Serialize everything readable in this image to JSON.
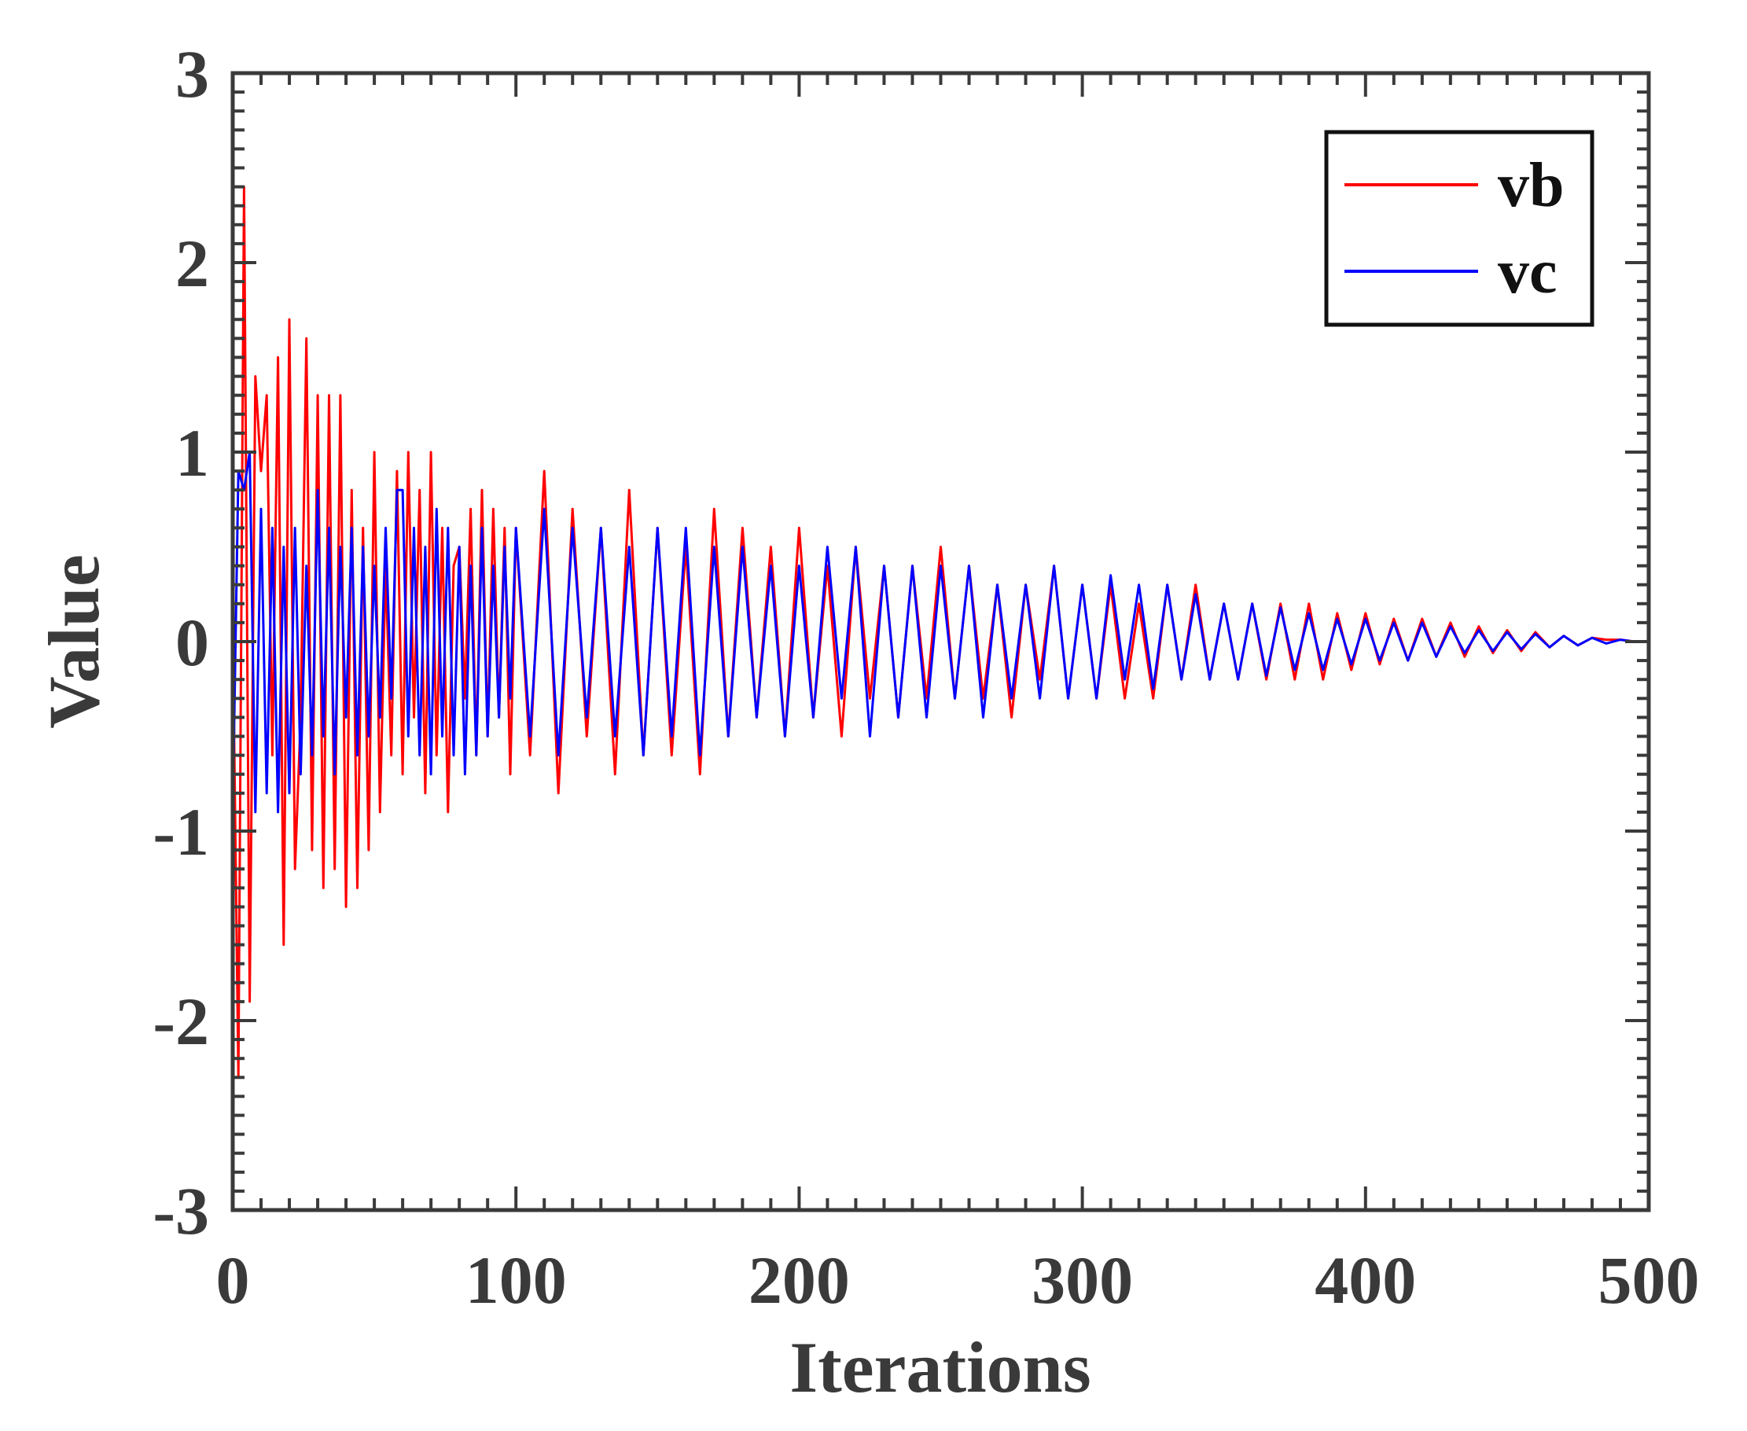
{
  "chart_data": {
    "type": "line",
    "title": "",
    "xlabel": "Iterations",
    "ylabel": "Value",
    "xlim": [
      0,
      500
    ],
    "ylim": [
      -3,
      3
    ],
    "xticks": [
      0,
      100,
      200,
      300,
      400,
      500
    ],
    "yticks": [
      -3,
      -2,
      -1,
      0,
      1,
      2,
      3
    ],
    "xtick_labels": [
      "0",
      "100",
      "200",
      "300",
      "400",
      "500"
    ],
    "ytick_labels": [
      "-3",
      "-2",
      "-1",
      "0",
      "1",
      "2",
      "3"
    ],
    "grid": false,
    "legend": {
      "position": "top-right",
      "entries": [
        "vb",
        "vc"
      ]
    },
    "series": [
      {
        "name": "vb",
        "color": "#ff0000",
        "x": [
          0,
          2,
          4,
          6,
          8,
          10,
          12,
          14,
          16,
          18,
          20,
          22,
          24,
          26,
          28,
          30,
          32,
          34,
          36,
          38,
          40,
          42,
          44,
          46,
          48,
          50,
          52,
          54,
          56,
          58,
          60,
          62,
          64,
          66,
          68,
          70,
          72,
          74,
          76,
          78,
          80,
          82,
          84,
          86,
          88,
          90,
          92,
          94,
          96,
          98,
          100,
          105,
          110,
          115,
          120,
          125,
          130,
          135,
          140,
          145,
          150,
          155,
          160,
          165,
          170,
          175,
          180,
          185,
          190,
          195,
          200,
          205,
          210,
          215,
          220,
          225,
          230,
          235,
          240,
          245,
          250,
          255,
          260,
          265,
          270,
          275,
          280,
          285,
          290,
          295,
          300,
          305,
          310,
          315,
          320,
          325,
          330,
          335,
          340,
          345,
          350,
          355,
          360,
          365,
          370,
          375,
          380,
          385,
          390,
          395,
          400,
          405,
          410,
          415,
          420,
          425,
          430,
          435,
          440,
          445,
          450,
          455,
          460,
          465,
          470,
          475,
          480,
          485,
          490,
          495,
          500
        ],
        "values": [
          0.1,
          -2.3,
          2.4,
          -1.9,
          1.4,
          0.9,
          1.3,
          -0.6,
          1.5,
          -1.6,
          1.7,
          -1.2,
          -0.4,
          1.6,
          -1.1,
          1.3,
          -1.3,
          1.3,
          -1.2,
          1.3,
          -1.4,
          0.8,
          -1.3,
          0.6,
          -1.1,
          1.0,
          -0.9,
          0.4,
          -0.6,
          0.9,
          -0.7,
          1.0,
          -0.4,
          0.8,
          -0.8,
          1.0,
          -0.6,
          0.6,
          -0.9,
          0.4,
          0.5,
          -0.3,
          0.7,
          -0.6,
          0.8,
          -0.5,
          0.7,
          -0.4,
          0.6,
          -0.7,
          0.6,
          -0.6,
          0.9,
          -0.8,
          0.7,
          -0.5,
          0.6,
          -0.7,
          0.8,
          -0.6,
          0.6,
          -0.6,
          0.5,
          -0.7,
          0.7,
          -0.5,
          0.6,
          -0.4,
          0.5,
          -0.5,
          0.6,
          -0.4,
          0.4,
          -0.5,
          0.5,
          -0.3,
          0.4,
          -0.4,
          0.4,
          -0.3,
          0.5,
          -0.3,
          0.4,
          -0.3,
          0.3,
          -0.4,
          0.3,
          -0.2,
          0.4,
          -0.3,
          0.3,
          -0.3,
          0.3,
          -0.3,
          0.2,
          -0.3,
          0.3,
          -0.2,
          0.3,
          -0.2,
          0.2,
          -0.2,
          0.2,
          -0.2,
          0.2,
          -0.2,
          0.2,
          -0.2,
          0.15,
          -0.15,
          0.15,
          -0.12,
          0.12,
          -0.1,
          0.12,
          -0.08,
          0.1,
          -0.08,
          0.08,
          -0.06,
          0.06,
          -0.05,
          0.05,
          -0.03,
          0.03,
          -0.02,
          0.02,
          0.01,
          0.01,
          0.0,
          0.0
        ]
      },
      {
        "name": "vc",
        "color": "#0000ff",
        "x": [
          0,
          2,
          4,
          6,
          8,
          10,
          12,
          14,
          16,
          18,
          20,
          22,
          24,
          26,
          28,
          30,
          32,
          34,
          36,
          38,
          40,
          42,
          44,
          46,
          48,
          50,
          52,
          54,
          56,
          58,
          60,
          62,
          64,
          66,
          68,
          70,
          72,
          74,
          76,
          78,
          80,
          82,
          84,
          86,
          88,
          90,
          92,
          94,
          96,
          98,
          100,
          105,
          110,
          115,
          120,
          125,
          130,
          135,
          140,
          145,
          150,
          155,
          160,
          165,
          170,
          175,
          180,
          185,
          190,
          195,
          200,
          205,
          210,
          215,
          220,
          225,
          230,
          235,
          240,
          245,
          250,
          255,
          260,
          265,
          270,
          275,
          280,
          285,
          290,
          295,
          300,
          305,
          310,
          315,
          320,
          325,
          330,
          335,
          340,
          345,
          350,
          355,
          360,
          365,
          370,
          375,
          380,
          385,
          390,
          395,
          400,
          405,
          410,
          415,
          420,
          425,
          430,
          435,
          440,
          445,
          450,
          455,
          460,
          465,
          470,
          475,
          480,
          485,
          490,
          495,
          500
        ],
        "values": [
          -0.9,
          0.9,
          0.8,
          1.0,
          -0.9,
          0.7,
          -0.8,
          0.6,
          -0.9,
          0.5,
          -0.8,
          0.6,
          -0.7,
          0.4,
          -0.6,
          0.8,
          -0.5,
          0.6,
          -0.7,
          0.5,
          -0.4,
          0.6,
          -0.6,
          0.5,
          -0.5,
          0.4,
          -0.4,
          0.6,
          -0.3,
          0.8,
          0.8,
          -0.5,
          0.6,
          -0.6,
          0.5,
          -0.7,
          0.7,
          -0.5,
          0.6,
          -0.6,
          0.5,
          -0.7,
          0.4,
          -0.6,
          0.6,
          -0.5,
          0.4,
          -0.4,
          0.5,
          -0.3,
          0.6,
          -0.5,
          0.7,
          -0.6,
          0.6,
          -0.4,
          0.6,
          -0.5,
          0.5,
          -0.6,
          0.6,
          -0.5,
          0.6,
          -0.6,
          0.5,
          -0.5,
          0.5,
          -0.4,
          0.4,
          -0.5,
          0.4,
          -0.4,
          0.5,
          -0.3,
          0.5,
          -0.5,
          0.4,
          -0.4,
          0.4,
          -0.4,
          0.4,
          -0.3,
          0.4,
          -0.4,
          0.3,
          -0.3,
          0.3,
          -0.3,
          0.4,
          -0.3,
          0.3,
          -0.3,
          0.35,
          -0.2,
          0.3,
          -0.25,
          0.3,
          -0.2,
          0.25,
          -0.2,
          0.2,
          -0.2,
          0.2,
          -0.18,
          0.18,
          -0.15,
          0.15,
          -0.15,
          0.12,
          -0.12,
          0.12,
          -0.1,
          0.1,
          -0.1,
          0.1,
          -0.08,
          0.08,
          -0.06,
          0.06,
          -0.05,
          0.05,
          -0.04,
          0.04,
          -0.03,
          0.03,
          -0.02,
          0.02,
          -0.01,
          0.01,
          0.0,
          0.0
        ]
      }
    ]
  }
}
